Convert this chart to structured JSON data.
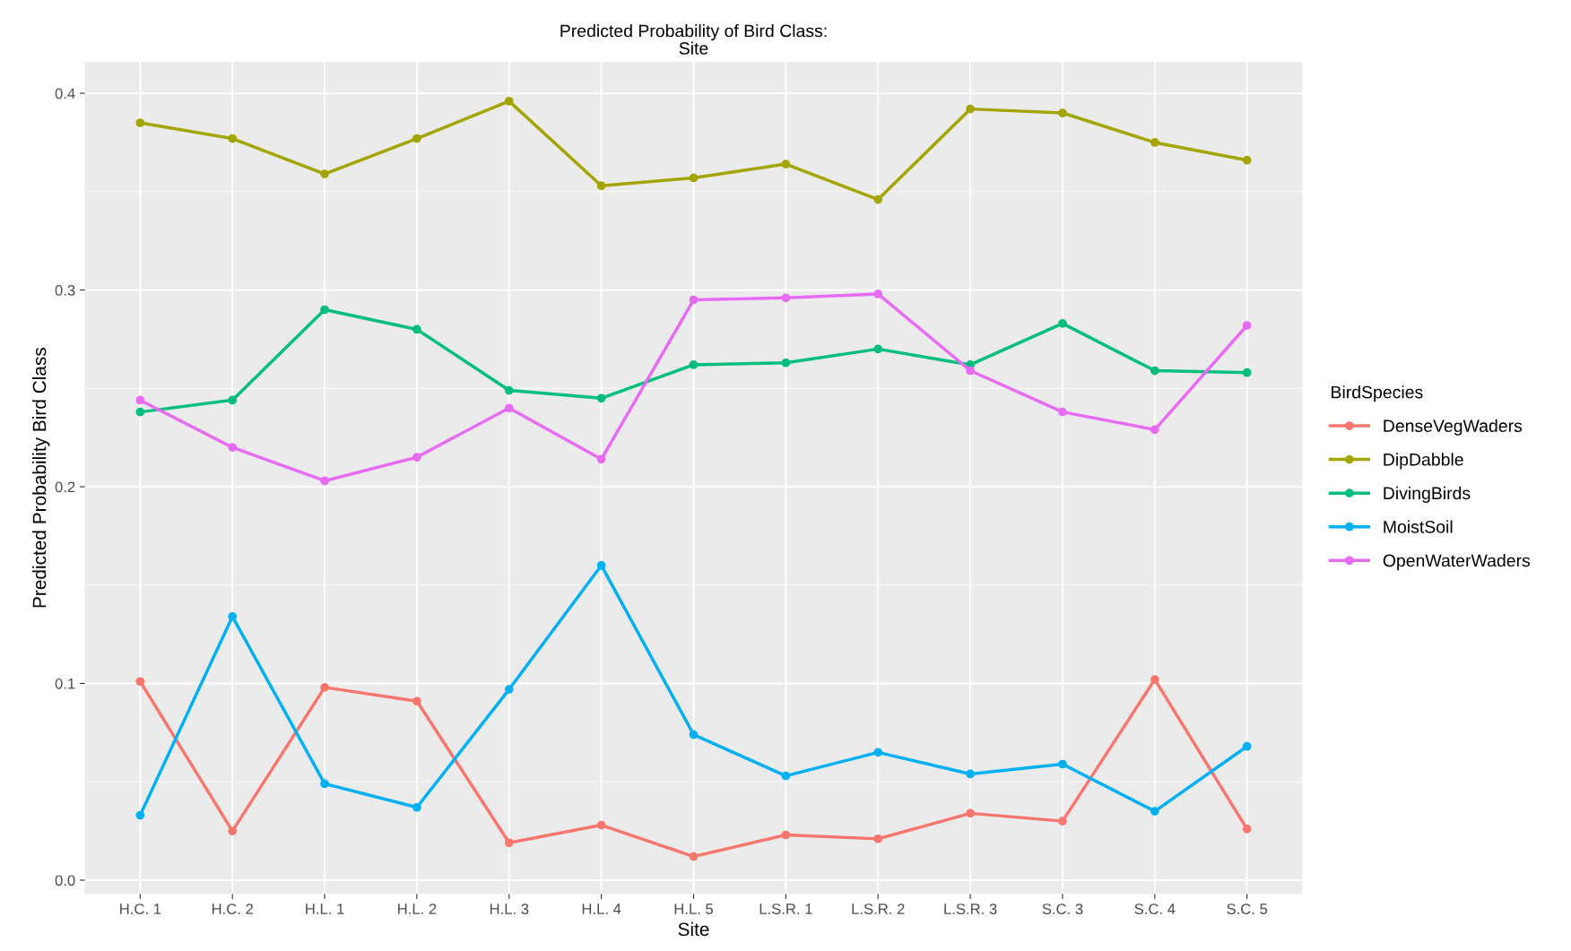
{
  "chart_data": {
    "type": "line",
    "title": "Predicted Probability of Bird Class:\nSite",
    "xlabel": "Site",
    "ylabel": "Predicted Probability Bird Class",
    "legend_title": "BirdSpecies",
    "legend": "right",
    "grid": true,
    "marker": "circle",
    "line_style": "solid",
    "categories": [
      "H.C. 1",
      "H.C. 2",
      "H.L. 1",
      "H.L. 2",
      "H.L. 3",
      "H.L. 4",
      "H.L. 5",
      "L.S.R. 1",
      "L.S.R. 2",
      "L.S.R. 3",
      "S.C. 3",
      "S.C. 4",
      "S.C. 5"
    ],
    "ylim": [
      -0.007,
      0.416
    ],
    "yticks": [
      {
        "value": 0,
        "label": "0.0"
      },
      0.1,
      0.2,
      0.3,
      0.4
    ],
    "series": [
      {
        "name": "DenseVegWaders",
        "color": "#f8766d",
        "values": [
          0.101,
          0.025,
          0.098,
          0.091,
          0.019,
          0.028,
          0.012,
          0.023,
          0.021,
          0.034,
          0.03,
          0.102,
          0.026
        ]
      },
      {
        "name": "DipDabble",
        "color": "#a3a500",
        "values": [
          0.385,
          0.377,
          0.359,
          0.377,
          0.396,
          0.353,
          0.357,
          0.364,
          0.346,
          0.392,
          0.39,
          0.375,
          0.366
        ]
      },
      {
        "name": "DivingBirds",
        "color": "#00bf7d",
        "values": [
          0.238,
          0.244,
          0.29,
          0.28,
          0.249,
          0.245,
          0.262,
          0.263,
          0.27,
          0.262,
          0.283,
          0.259,
          0.258
        ]
      },
      {
        "name": "MoistSoil",
        "color": "#00b0f6",
        "values": [
          0.033,
          0.134,
          0.049,
          0.037,
          0.097,
          0.16,
          0.074,
          0.053,
          0.065,
          0.054,
          0.059,
          0.035,
          0.068
        ]
      },
      {
        "name": "OpenWaterWaders",
        "color": "#e76bf3",
        "values": [
          0.244,
          0.22,
          0.203,
          0.215,
          0.24,
          0.214,
          0.295,
          0.296,
          0.298,
          0.259,
          0.238,
          0.229,
          0.282
        ]
      }
    ]
  }
}
